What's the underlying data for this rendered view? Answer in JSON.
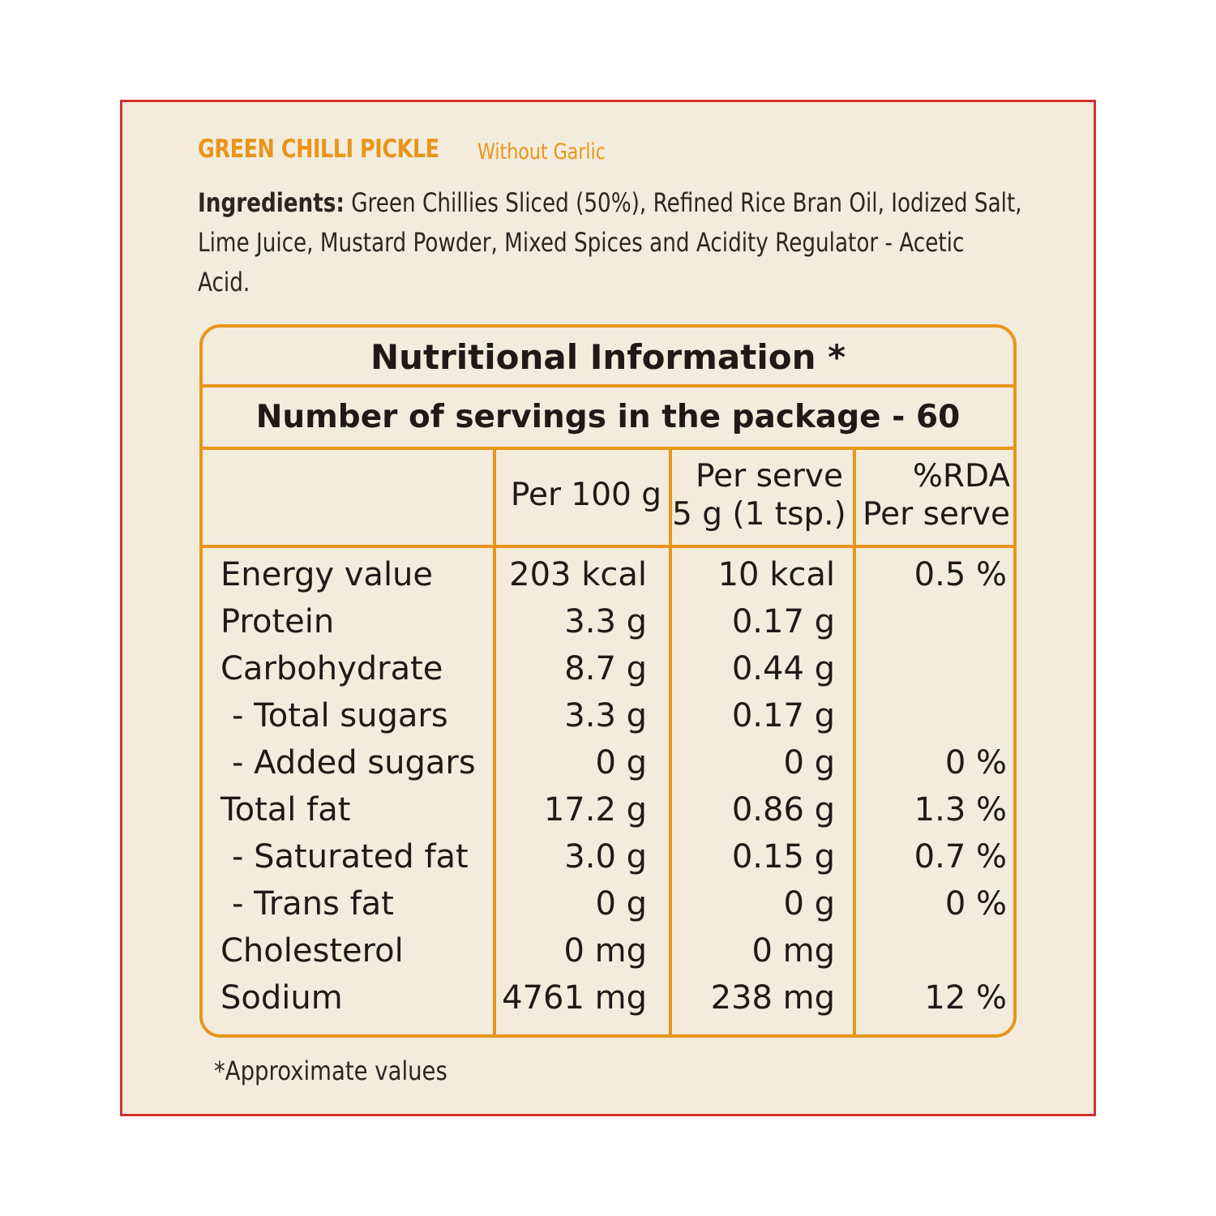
{
  "product": {
    "name": "GREEN CHILLI PICKLE",
    "variant": "Without Garlic"
  },
  "ingredients": {
    "label": "Ingredients:",
    "text": " Green Chillies Sliced (50%), Refined Rice Bran Oil, Iodized Salt, Lime Juice, Mustard Powder, Mixed Spices and Acidity Regulator - Acetic Acid."
  },
  "nutrition": {
    "title": "Nutritional Information *",
    "servings": "Number of servings in the package - 60",
    "columns": {
      "per100": "Per 100 g",
      "serve_line1": "Per serve",
      "serve_line2": "5 g (1 tsp.)",
      "rda_line1": "%RDA",
      "rda_line2": "Per serve"
    },
    "rows": [
      {
        "name": "Energy value",
        "per100": "203 kcal",
        "serve": "10 kcal",
        "rda": "0.5 %"
      },
      {
        "name": "Protein",
        "per100": "3.3 g",
        "serve": "0.17 g",
        "rda": ""
      },
      {
        "name": "Carbohydrate",
        "per100": "8.7 g",
        "serve": "0.44 g",
        "rda": ""
      },
      {
        "name": "- Total sugars",
        "per100": "3.3 g",
        "serve": "0.17 g",
        "rda": ""
      },
      {
        "name": "- Added sugars",
        "per100": "0 g",
        "serve": "0 g",
        "rda": "0 %"
      },
      {
        "name": "Total fat",
        "per100": "17.2 g",
        "serve": "0.86 g",
        "rda": "1.3 %"
      },
      {
        "name": "- Saturated fat",
        "per100": "3.0 g",
        "serve": "0.15 g",
        "rda": "0.7 %"
      },
      {
        "name": "- Trans fat",
        "per100": "0 g",
        "serve": "0 g",
        "rda": "0 %"
      },
      {
        "name": "Cholesterol",
        "per100": "0 mg",
        "serve": "0 mg",
        "rda": ""
      },
      {
        "name": "Sodium",
        "per100": "4761 mg",
        "serve": "238 mg",
        "rda": "12 %"
      }
    ],
    "footnote": "*Approximate values"
  },
  "colors": {
    "frame_border": "#d9302f",
    "background": "#f3ecdc",
    "accent": "#e8951b",
    "text": "#1f1a16"
  }
}
